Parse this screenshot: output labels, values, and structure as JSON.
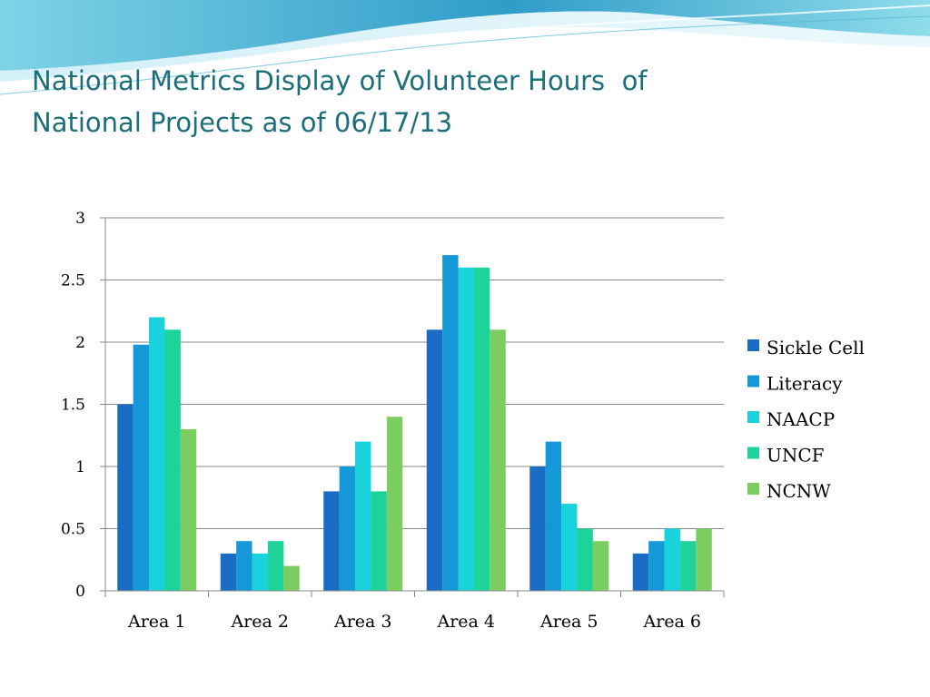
{
  "slide": {
    "title_line1": "National Metrics Display of Volunteer Hours  of",
    "title_line2": "National Projects as of 06/17/13"
  },
  "theme": {
    "title_color": "#1c6f7a",
    "wave_colors": [
      "#7fd3e6",
      "#2f9cc8",
      "#cfeef7"
    ]
  },
  "chart_data": {
    "type": "bar",
    "categories": [
      "Area 1",
      "Area 2",
      "Area 3",
      "Area 4",
      "Area 5",
      "Area 6"
    ],
    "series": [
      {
        "name": "Sickle Cell",
        "color": "#1a6cc4",
        "values": [
          1.5,
          0.3,
          0.8,
          2.1,
          1.0,
          0.3
        ]
      },
      {
        "name": "Literacy",
        "color": "#1598d8",
        "values": [
          1.98,
          0.4,
          1.0,
          2.7,
          1.2,
          0.4
        ]
      },
      {
        "name": "NAACP",
        "color": "#18d2dc",
        "values": [
          2.2,
          0.3,
          1.2,
          2.6,
          0.7,
          0.5
        ]
      },
      {
        "name": "UNCF",
        "color": "#1ed39a",
        "values": [
          2.1,
          0.4,
          0.8,
          2.6,
          0.5,
          0.4
        ]
      },
      {
        "name": "NCNW",
        "color": "#7ccd60",
        "values": [
          1.3,
          0.2,
          1.4,
          2.1,
          0.4,
          0.5
        ]
      }
    ],
    "yticks": [
      "0",
      "0.5",
      "1",
      "1.5",
      "2",
      "2.5",
      "3"
    ],
    "ylim": [
      0,
      3
    ],
    "grid": true,
    "legend_position": "right"
  }
}
